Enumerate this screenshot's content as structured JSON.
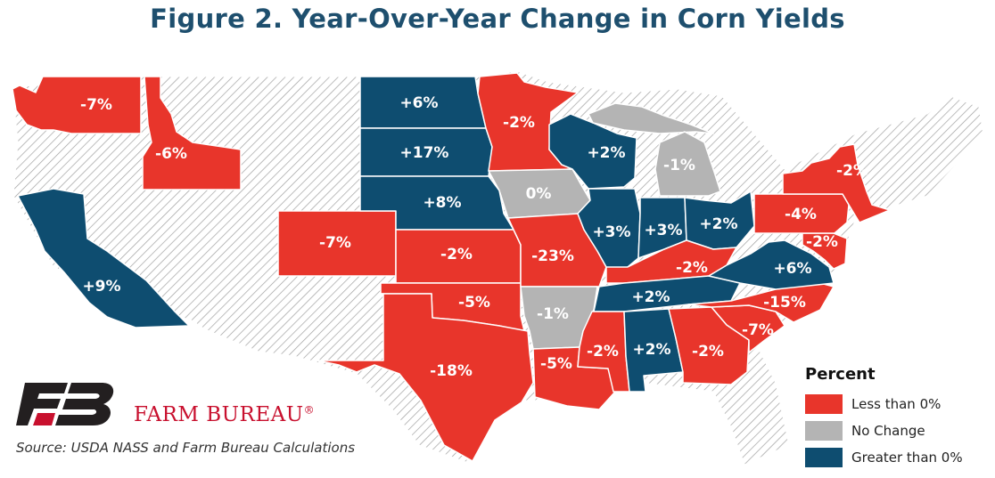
{
  "title": "Figure 2. Year-Over-Year Change in Corn Yields",
  "colors": {
    "negative": "#e8352b",
    "no_change": "#b4b4b4",
    "positive": "#0e4d70",
    "no_data_hatch": "#a0a0a0"
  },
  "states": [
    {
      "name": "WA",
      "value": "-7%",
      "category": "negative"
    },
    {
      "name": "ID",
      "value": "-6%",
      "category": "negative"
    },
    {
      "name": "CA",
      "value": "+9%",
      "category": "positive"
    },
    {
      "name": "CO",
      "value": "-7%",
      "category": "negative"
    },
    {
      "name": "ND",
      "value": "+6%",
      "category": "positive"
    },
    {
      "name": "SD",
      "value": "+17%",
      "category": "positive"
    },
    {
      "name": "NE",
      "value": "+8%",
      "category": "positive"
    },
    {
      "name": "KS",
      "value": "-2%",
      "category": "negative"
    },
    {
      "name": "OK",
      "value": "-5%",
      "category": "negative"
    },
    {
      "name": "TX",
      "value": "-18%",
      "category": "negative"
    },
    {
      "name": "MN",
      "value": "-2%",
      "category": "negative"
    },
    {
      "name": "IA",
      "value": "0%",
      "category": "no_change"
    },
    {
      "name": "MO",
      "value": "-23%",
      "category": "negative"
    },
    {
      "name": "AR",
      "value": "-1%",
      "category": "no_change"
    },
    {
      "name": "LA",
      "value": "-5%",
      "category": "negative"
    },
    {
      "name": "WI",
      "value": "+2%",
      "category": "positive"
    },
    {
      "name": "IL",
      "value": "+3%",
      "category": "positive"
    },
    {
      "name": "MI",
      "value": "-1%",
      "category": "no_change"
    },
    {
      "name": "IN",
      "value": "+3%",
      "category": "positive"
    },
    {
      "name": "OH",
      "value": "+2%",
      "category": "positive"
    },
    {
      "name": "KY",
      "value": "-2%",
      "category": "negative"
    },
    {
      "name": "TN",
      "value": "+2%",
      "category": "positive"
    },
    {
      "name": "MS",
      "value": "-2%",
      "category": "negative"
    },
    {
      "name": "AL",
      "value": "+2%",
      "category": "positive"
    },
    {
      "name": "GA",
      "value": "-2%",
      "category": "negative"
    },
    {
      "name": "SC",
      "value": "-7%",
      "category": "negative"
    },
    {
      "name": "NC",
      "value": "-15%",
      "category": "negative"
    },
    {
      "name": "VA",
      "value": "+6%",
      "category": "positive"
    },
    {
      "name": "PA",
      "value": "-4%",
      "category": "negative"
    },
    {
      "name": "NY",
      "value": "-2%",
      "category": "negative"
    },
    {
      "name": "MD",
      "value": "-2%",
      "category": "negative"
    }
  ],
  "legend": {
    "title": "Percent",
    "items": [
      {
        "label": "Less than 0%",
        "color": "#e8352b"
      },
      {
        "label": "No Change",
        "color": "#b4b4b4"
      },
      {
        "label": "Greater than 0%",
        "color": "#0e4d70"
      }
    ]
  },
  "brand": {
    "name": "FARM BUREAU",
    "registered": "®"
  },
  "source": "Source: USDA NASS and Farm Bureau Calculations"
}
